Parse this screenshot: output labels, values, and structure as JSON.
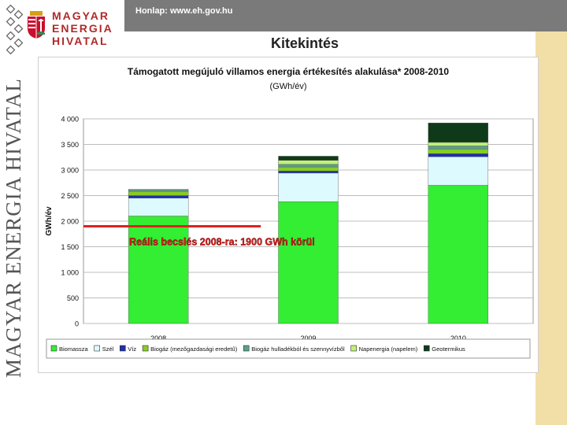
{
  "header": {
    "homepage": "Honlap: www.eh.gov.hu",
    "logo_lines": [
      "MAGYAR",
      "ENERGIA",
      "HIVATAL"
    ],
    "vertical_title": "MAGYAR ENERGIA HIVATAL"
  },
  "slide": {
    "title": "Kitekintés"
  },
  "chart_data": {
    "type": "bar",
    "stacked": true,
    "title": "Támogatott megújuló villamos energia értékesítés alakulása* 2008-2010",
    "subtitle": "(GWh/év)",
    "ylabel": "GWh/év",
    "xlabel": "",
    "categories": [
      "2008",
      "2009",
      "2010"
    ],
    "ylim": [
      0,
      4000
    ],
    "yticks": [
      0,
      500,
      1000,
      1500,
      2000,
      2500,
      3000,
      3500,
      4000
    ],
    "ytick_labels": [
      "0",
      "500",
      "1 000",
      "1 500",
      "2 000",
      "2 500",
      "3 000",
      "3 500",
      "4 000"
    ],
    "grid": true,
    "legend_position": "bottom",
    "series": [
      {
        "name": "Biomassza",
        "color": "#33ee33",
        "values": [
          2100,
          2380,
          2700
        ]
      },
      {
        "name": "Szél",
        "color": "#ddfaff",
        "values": [
          350,
          560,
          560
        ]
      },
      {
        "name": "Víz",
        "color": "#1f2fa8",
        "values": [
          50,
          40,
          60
        ]
      },
      {
        "name": "Biogáz (mezőgazdasági eredetű)",
        "color": "#88cc22",
        "values": [
          80,
          80,
          90
        ]
      },
      {
        "name": "Biogáz hulladékból és szennyvízből",
        "color": "#5aa08c",
        "values": [
          30,
          50,
          60
        ]
      },
      {
        "name": "Napenergia (napelem)",
        "color": "#c0f078",
        "values": [
          15,
          80,
          70
        ]
      },
      {
        "name": "Geotermikus",
        "color": "#0f3a1a",
        "values": [
          0,
          80,
          380
        ]
      }
    ],
    "annotation": {
      "text": "Reális becslés 2008-ra: 1900 GWh körül",
      "value": 1900,
      "color": "#e02020"
    }
  }
}
